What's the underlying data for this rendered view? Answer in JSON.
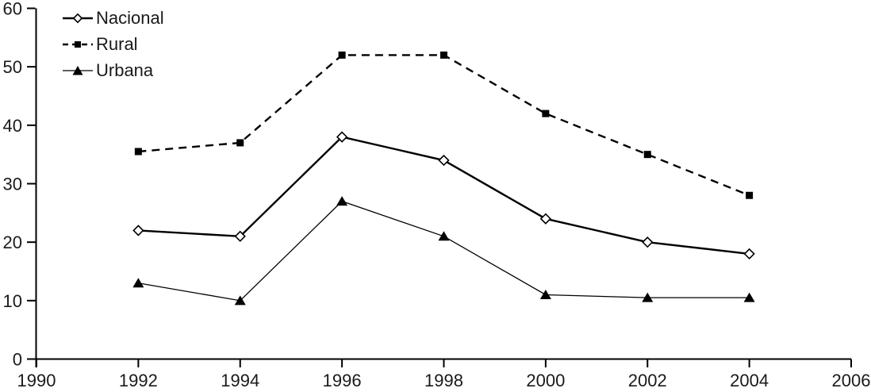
{
  "chart_data": {
    "type": "line",
    "title": "",
    "xlabel": "",
    "ylabel": "",
    "x": [
      1992,
      1994,
      1996,
      1998,
      2000,
      2002,
      2004
    ],
    "series": [
      {
        "name": "Nacional",
        "values": [
          22,
          21,
          38,
          34,
          24,
          20,
          18
        ],
        "line_style": "solid",
        "line_width": "thick",
        "marker": "open-diamond",
        "color": "#000000"
      },
      {
        "name": "Rural",
        "values": [
          35.5,
          37,
          52,
          52,
          42,
          35,
          28
        ],
        "line_style": "dashed",
        "line_width": "thick",
        "marker": "filled-square",
        "color": "#000000"
      },
      {
        "name": "Urbana",
        "values": [
          13,
          10,
          27,
          21,
          11,
          10.5,
          10.5
        ],
        "line_style": "solid",
        "line_width": "thin",
        "marker": "filled-triangle",
        "color": "#000000"
      }
    ],
    "xlim": [
      1990,
      2006
    ],
    "ylim": [
      0,
      60
    ],
    "x_ticks": [
      1990,
      1992,
      1994,
      1996,
      1998,
      2000,
      2002,
      2004,
      2006
    ],
    "y_ticks": [
      0,
      10,
      20,
      30,
      40,
      50,
      60
    ],
    "grid": false,
    "legend_position": "top-left",
    "colors": {
      "line": "#000000",
      "text": "#1a1a1a",
      "background": "#ffffff"
    }
  }
}
